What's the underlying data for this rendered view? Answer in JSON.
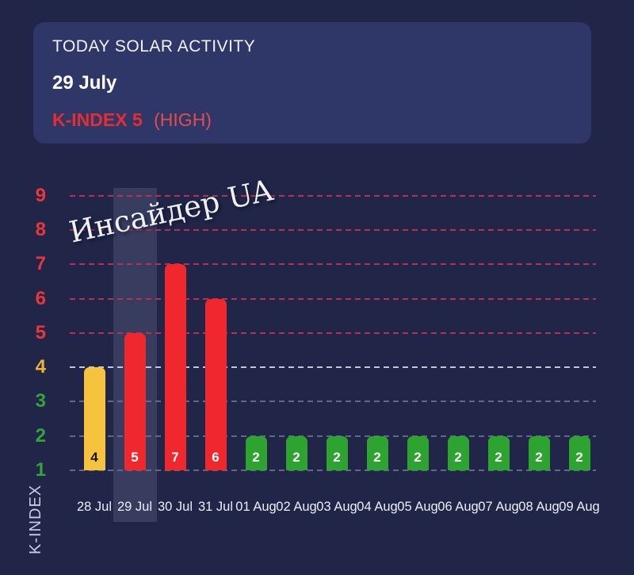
{
  "header": {
    "title": "TODAY SOLAR ACTIVITY",
    "date": "29 July",
    "kindex_value_label": "K-INDEX 5",
    "kindex_status_label": "(HIGH)"
  },
  "watermark": "Инсайдер UA",
  "colors": {
    "background": "#212649",
    "card_background": "#2f3668",
    "title_text": "#f2f3f8",
    "kindex_text": "#e62e31",
    "kindex_status_text": "#e44d4e",
    "highlight_band": "rgba(197,206,238,0.14)",
    "xlabel_text": "#eceef6",
    "ylabel_text": "#c9cce6",
    "watermark_text": "#eef0f4",
    "bar_red": "#f0282e",
    "bar_yellow": "#f6c33f",
    "bar_green": "#2ca42f"
  },
  "chart_data": {
    "type": "bar",
    "title": "",
    "xlabel": "",
    "ylabel": "K-INDEX",
    "ylim": [
      1,
      9
    ],
    "grid": true,
    "grid_style": "dashed",
    "legend": false,
    "categories": [
      "28 Jul",
      "29 Jul",
      "30 Jul",
      "31 Jul",
      "01 Aug",
      "02 Aug",
      "03 Aug",
      "04 Aug",
      "05 Aug",
      "06 Aug",
      "07 Aug",
      "08 Aug",
      "09 Aug"
    ],
    "values": [
      4,
      5,
      7,
      6,
      2,
      2,
      2,
      2,
      2,
      2,
      2,
      2,
      2
    ],
    "bar_colors": [
      "#f6c33f",
      "#f0282e",
      "#f0282e",
      "#f0282e",
      "#2ca42f",
      "#2ca42f",
      "#2ca42f",
      "#2ca42f",
      "#2ca42f",
      "#2ca42f",
      "#2ca42f",
      "#2ca42f",
      "#2ca42f"
    ],
    "value_label_colors": [
      "#151515",
      "#ffffff",
      "#ffffff",
      "#ffffff",
      "#ffffff",
      "#ffffff",
      "#ffffff",
      "#ffffff",
      "#ffffff",
      "#ffffff",
      "#ffffff",
      "#ffffff",
      "#ffffff"
    ],
    "yticks": [
      1,
      2,
      3,
      4,
      5,
      6,
      7,
      8,
      9
    ],
    "ytick_colors": [
      "#33a43a",
      "#33a43a",
      "#33a43a",
      "#edb23c",
      "#e8363c",
      "#e8363c",
      "#e8363c",
      "#e8363c",
      "#e8363c"
    ],
    "grid_colors": [
      "#61688c",
      "#61688c",
      "#61688c",
      "#c3c6d4",
      "#b13551",
      "#b13551",
      "#b13551",
      "#b13551",
      "#b13551"
    ],
    "highlighted_category": "29 Jul",
    "highlighted_index": 1
  }
}
